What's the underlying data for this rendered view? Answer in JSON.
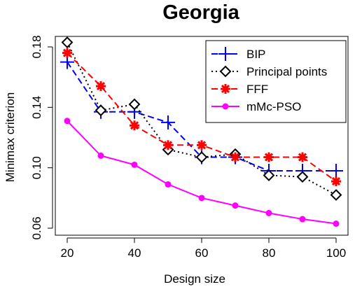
{
  "chart_data": {
    "type": "line",
    "title": "Georgia",
    "xlabel": "Design size",
    "ylabel": "Minimax criterion",
    "xlim": [
      20,
      100
    ],
    "ylim": [
      0.06,
      0.18
    ],
    "xticks": [
      20,
      40,
      60,
      80,
      100
    ],
    "yticks": [
      0.06,
      0.1,
      0.14,
      0.18
    ],
    "x": [
      20,
      30,
      40,
      50,
      60,
      70,
      80,
      90,
      100
    ],
    "legend_position": "top-right",
    "series": [
      {
        "name": "BIP",
        "color": "#0000ff",
        "line_style": "dashed",
        "marker": "plus",
        "values": [
          0.17,
          0.137,
          0.137,
          0.13,
          0.107,
          0.107,
          0.098,
          0.098,
          0.098
        ]
      },
      {
        "name": "Principal points",
        "color": "#000000",
        "line_style": "dotted",
        "marker": "diamond",
        "values": [
          0.183,
          0.138,
          0.142,
          0.112,
          0.107,
          0.109,
          0.095,
          0.094,
          0.082
        ]
      },
      {
        "name": "FFF",
        "color": "#ff0000",
        "line_style": "dashed",
        "marker": "asterisk",
        "values": [
          0.176,
          0.154,
          0.128,
          0.115,
          0.115,
          0.107,
          0.107,
          0.107,
          0.091
        ]
      },
      {
        "name": "mMc-PSO",
        "color": "#ff00ff",
        "line_style": "solid",
        "marker": "dot",
        "values": [
          0.131,
          0.108,
          0.102,
          0.089,
          0.08,
          0.075,
          0.07,
          0.066,
          0.063
        ]
      }
    ]
  }
}
